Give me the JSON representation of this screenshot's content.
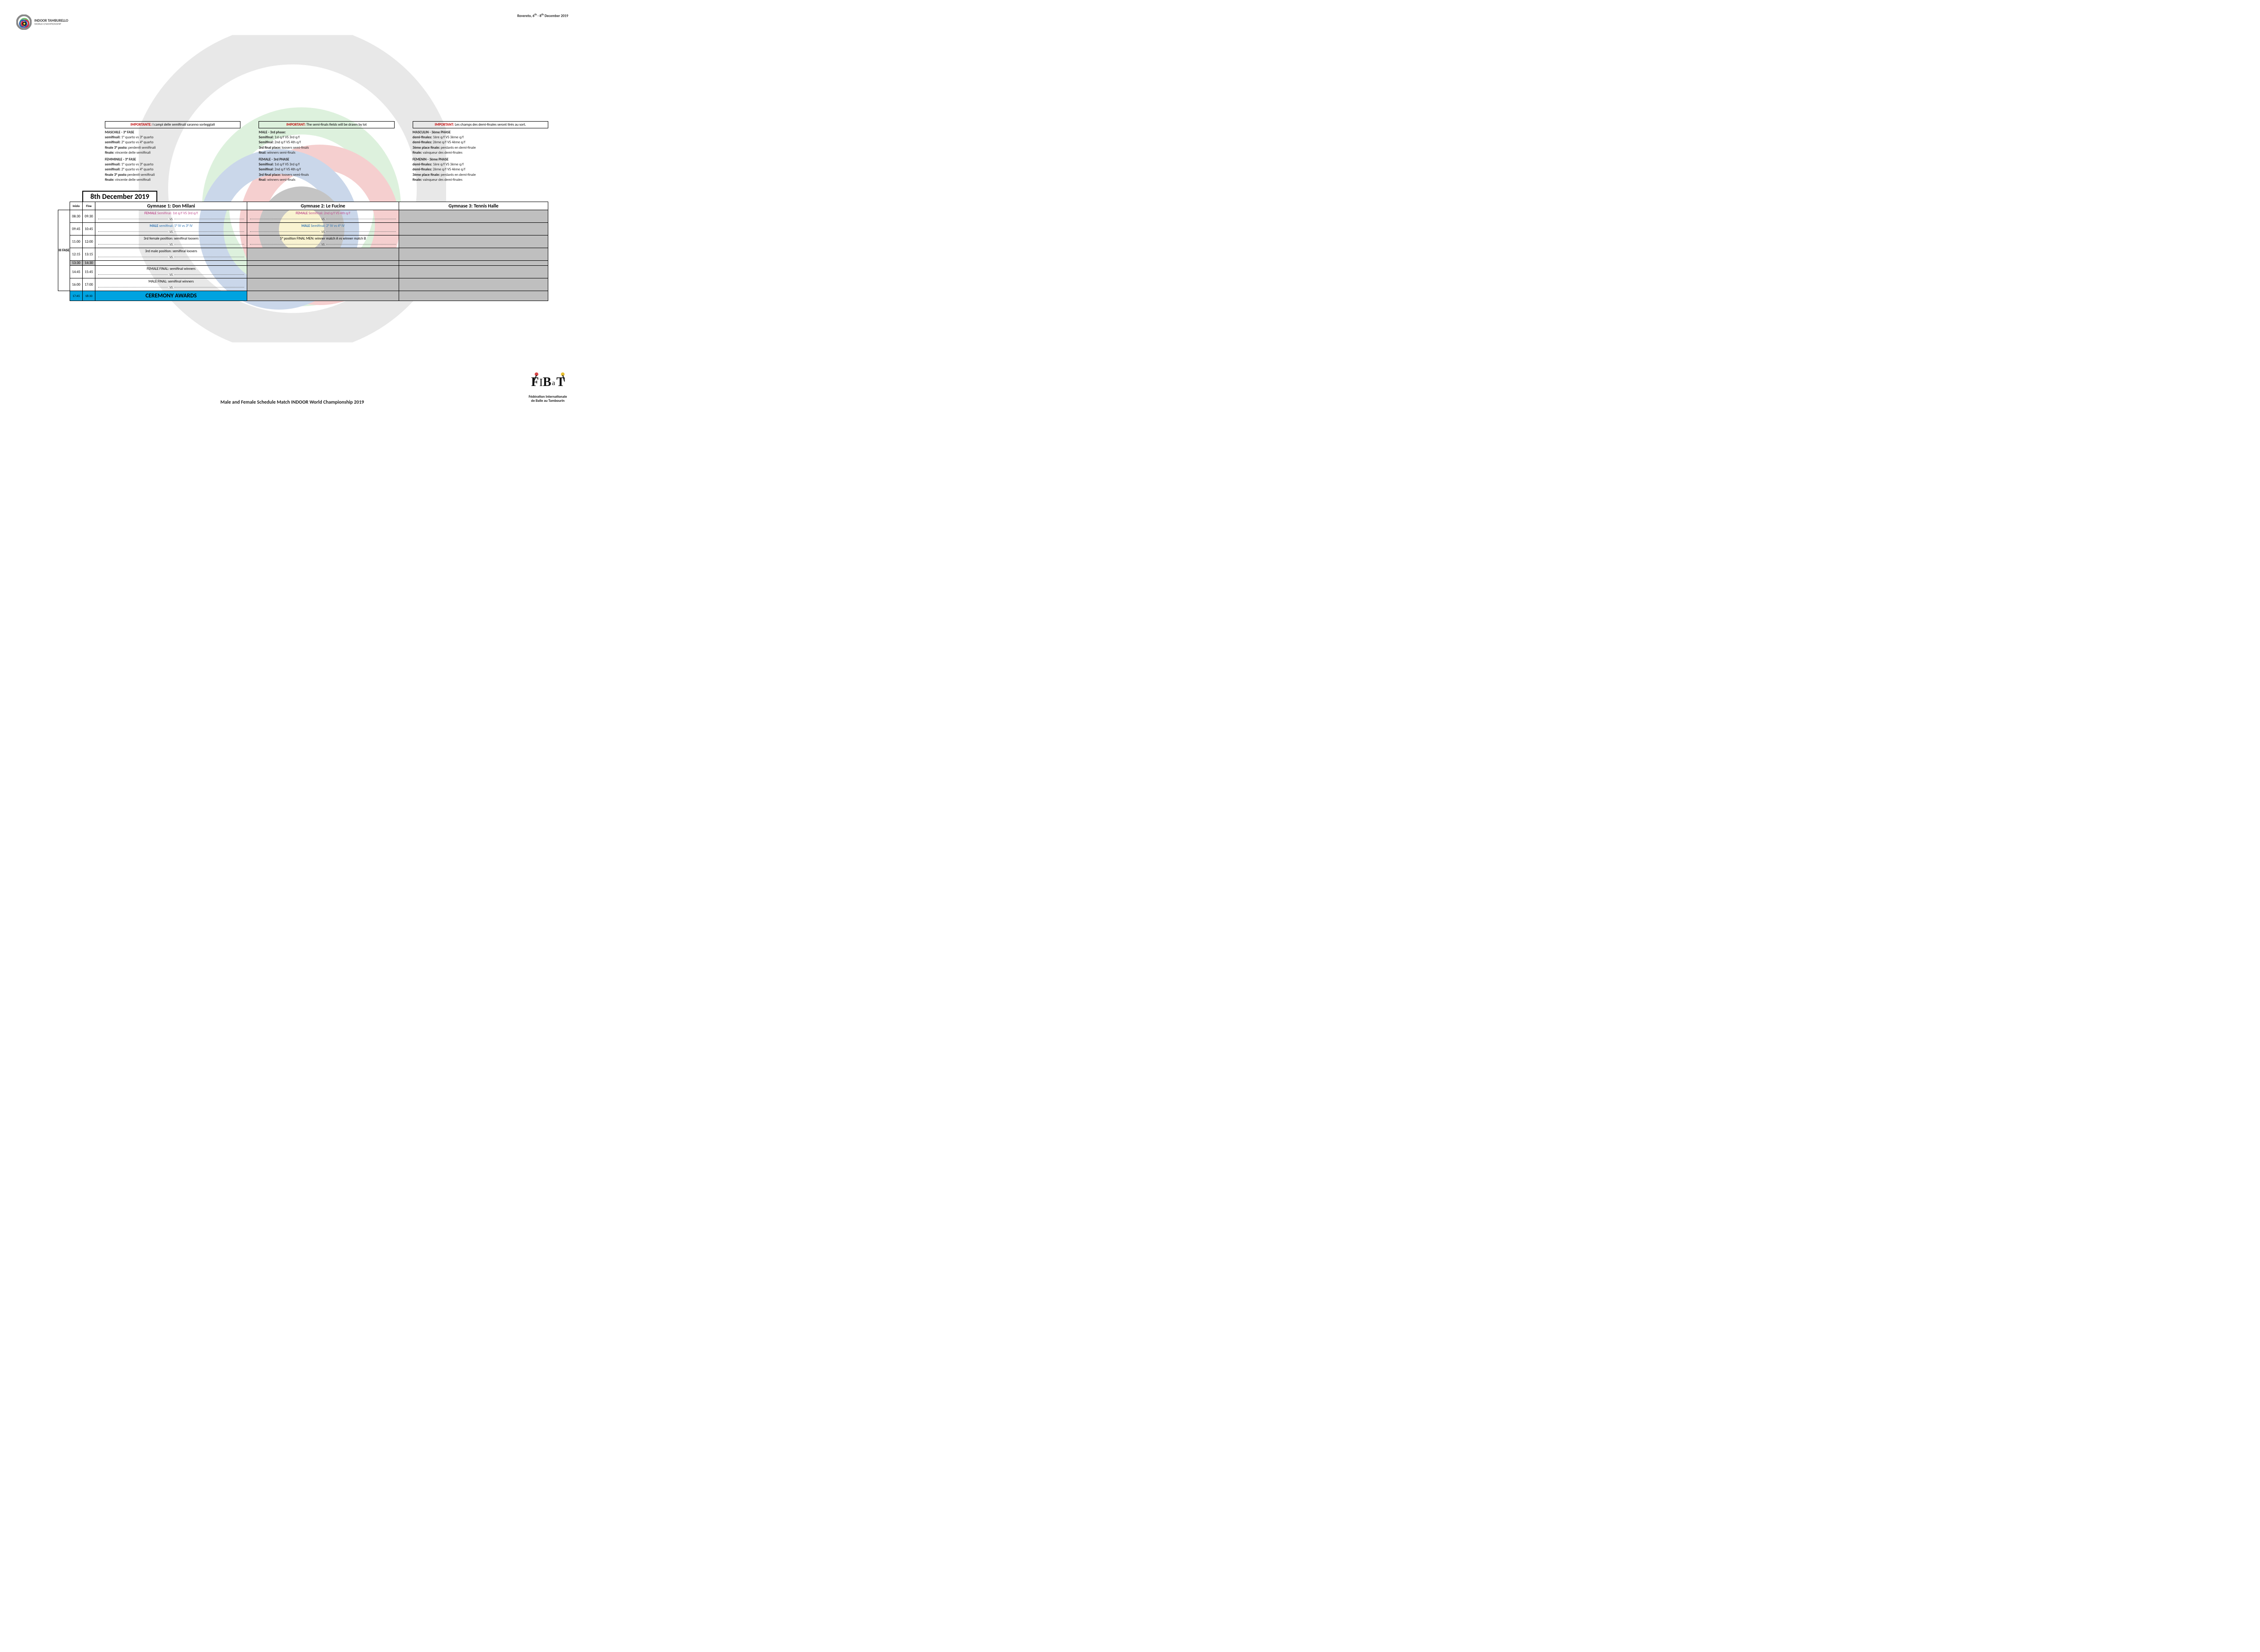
{
  "header": {
    "brand_line1": "INDOOR TAMBURELLO",
    "brand_line2": "WORLD CHAMPIONSHIP",
    "top_right_prefix": "Rovereto, 6",
    "top_right_sup1": "th",
    "top_right_mid": " - 8",
    "top_right_sup2": "th",
    "top_right_suffix": " December 2019"
  },
  "colors": {
    "important": "#c00000",
    "female": "#c05090",
    "male": "#2e74b5",
    "grey_fill": "#bfbfbf",
    "ceremony_fill": "#00a3e0",
    "border": "#000000"
  },
  "bg_logo": {
    "outer_grey": "#a8a8a8",
    "green": "#7cc87c",
    "red": "#d94545",
    "blue": "#2f63b0",
    "inner_black": "#1a1a1a",
    "yellow": "#e8d04a"
  },
  "notices": {
    "it": {
      "important_label": "IMPORTANTE:",
      "important_text": " I campi delle semifinali saranno sorteggiati",
      "male_title": "MASCHILE - 3° FASE",
      "male_lines": [
        {
          "b": "semifinali:",
          "t": " 1° quarto vs 3° quarto"
        },
        {
          "b": "semifinali:",
          "t": " 2° quarto vs 4° quarto"
        },
        {
          "b": "finale 3° posto:",
          "t": " perdenti semifinali"
        },
        {
          "b": "finale:",
          "t": " vincente delle semifinali"
        }
      ],
      "female_title": "FEMMINILE - 3° FASE",
      "female_lines": [
        {
          "b": "semifinali:",
          "t": " 1° quarto vs 3° quarto"
        },
        {
          "b": "semifinali:",
          "t": " 2° quarto vs 4° quarto"
        },
        {
          "b": "finale 3° posto",
          "t": " perdenti semifinali"
        },
        {
          "b": "finale:",
          "t": " vincente delle semifinali"
        }
      ]
    },
    "en": {
      "important_label": "IMPORTANT:",
      "important_text": " The semi-finals fields will be drawn by lot",
      "male_title": "MALE - 3rd phase:",
      "male_lines": [
        {
          "b": "Semifinal:",
          "t": " 1st q/f VS 3rd q/f"
        },
        {
          "b": "Semifinal:",
          "t": " 2nd q/f VS 4th q/f"
        },
        {
          "b": "3rd final place:",
          "t": " loosers semi-finals"
        },
        {
          "b": "final:",
          "t": " winners semi-finals"
        }
      ],
      "female_title": "FEMALE - 3rd PHASE",
      "female_lines": [
        {
          "b": "Semifinal:",
          "t": " 1st q/f VS 3rd q/f"
        },
        {
          "b": "Semifinal:",
          "t": " 2nd q/f VS 4th q/f"
        },
        {
          "b": "3rd final place:",
          "t": " loosers semi-finals"
        },
        {
          "b": "final:",
          "t": " winners semi-finals"
        }
      ]
    },
    "fr": {
      "important_label": "IMPORTANT:",
      "important_text": " Les champs des demi-finales seront tirés au sort.",
      "male_title": "MASCULIN - 3ème PHASE",
      "male_lines": [
        {
          "b": "demi-finales:",
          "t": " 1ère q/f VS 3ème q/f"
        },
        {
          "b": "demi-finales:",
          "t": " 2ème q/f VS 4ème q/f"
        },
        {
          "b": "3ème place finale:",
          "t": " perdants en demi-finale"
        },
        {
          "b": "finale:",
          "t": " vainqueur des demi-finales"
        }
      ],
      "female_title": "FEMENIN - 3ème PHASE",
      "female_lines": [
        {
          "b": "demi-finales:",
          "t": " 1ère q/f VS 3ème q/f"
        },
        {
          "b": "demi-finales:",
          "t": " 2ème q/f VS 4ème q/f"
        },
        {
          "b": "3ème place finale:",
          "t": " perdants en demi-finale"
        },
        {
          "b": "finale:",
          "t": " vainqueur des demi-finales"
        }
      ]
    }
  },
  "schedule": {
    "date": "8th December 2019",
    "col_headers": {
      "inizio": "Inizio",
      "fine": "Fine",
      "gym1": "Gymnase 1: Don Milani",
      "gym2": "Gymnase 2: Le Fucine",
      "gym3": "Gymnase 3: Tennis Halle"
    },
    "phase_label": "III FASE",
    "vs_label": "VS",
    "rows": [
      {
        "start": "08:30",
        "end": "09:30",
        "g1": {
          "cls": "pink",
          "html": "<b>FEMALE</b> Semifinal: 1st q/f VS 3rd q/f",
          "vs": true
        },
        "g2": {
          "cls": "pink",
          "html": "<b>FEMALE</b> Semifinal: 2nd q/f VS 4th q/f",
          "vs": true
        },
        "g3": {
          "grey": true
        }
      },
      {
        "start": "09:45",
        "end": "10:45",
        "g1": {
          "cls": "blue",
          "html": "<b>MALE</b> semifinal: 1° IV vs 3° IV",
          "vs": true
        },
        "g2": {
          "cls": "blue",
          "html": "<b>MALE</b> Semifinal: 2° IV vs 4° IV",
          "vs": true
        },
        "g3": {
          "grey": true
        }
      },
      {
        "start": "11:00",
        "end": "12:00",
        "g1": {
          "cls": "",
          "html": "3rd female position: semifinal loosers",
          "vs": true
        },
        "g2": {
          "cls": "",
          "html": "5° position FINAL MEN: winner match A vs winner match B",
          "vs": true
        },
        "g3": {
          "grey": true
        }
      },
      {
        "start": "12:15",
        "end": "13:15",
        "g1": {
          "cls": "",
          "html": "3rd male position: semifinal loosers",
          "vs": true
        },
        "g2": {
          "grey": true
        },
        "g3": {
          "grey": true
        }
      }
    ],
    "thin_row": {
      "start": "13:30",
      "end": "14:30"
    },
    "rows2": [
      {
        "start": "14:45",
        "end": "15:45",
        "g1": {
          "cls": "",
          "html": "FEMALE FINAL: semifinal winners",
          "vs": true
        },
        "g2": {
          "grey": true
        },
        "g3": {
          "grey": true
        }
      },
      {
        "start": "16:00",
        "end": "17:00",
        "g1": {
          "cls": "",
          "html": "MALE FINAL: semifinal winners",
          "vs": true
        },
        "g2": {
          "grey": true
        },
        "g3": {
          "grey": true
        }
      }
    ],
    "ceremony": {
      "start": "17:45",
      "end": "18:30",
      "label": "CEREMONY AWARDS"
    }
  },
  "footer": {
    "title": "Male and Female Schedule Match INDOOR World Championship 2019",
    "fibat_line1": "Fédération Internationale",
    "fibat_line2": "de Balle au Tambourin"
  }
}
